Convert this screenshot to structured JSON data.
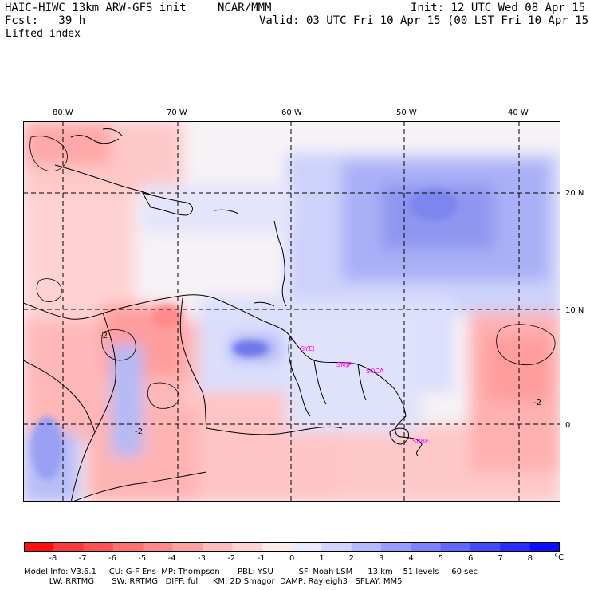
{
  "header": {
    "model": "HAIC-HIWC 13km ARW-GFS init",
    "org": "NCAR/MMM",
    "init": "Init: 12 UTC Wed 08 Apr 15",
    "fcst": "Fcst:   39 h",
    "valid": "Valid: 03 UTC Fri 10 Apr 15 (00 LST Fri 10 Apr 15)",
    "field": "Lifted index"
  },
  "map": {
    "longitude_labels": [
      "80 W",
      "70 W",
      "60 W",
      "50 W",
      "40 W"
    ],
    "latitude_labels": [
      "20 N",
      "10 N",
      "0"
    ],
    "contour_labels": [
      "-2",
      "-2",
      "-2"
    ],
    "stations": [
      "SYEJ",
      "SMJP",
      "SOCA",
      "SBBE"
    ]
  },
  "legend": {
    "ticks": [
      "-8",
      "-7",
      "-6",
      "-5",
      "-4",
      "-3",
      "-2",
      "-1",
      "0",
      "1",
      "2",
      "3",
      "4",
      "5",
      "6",
      "7",
      "8"
    ],
    "unit": "°C",
    "colors": [
      "#ff1010",
      "#ff3a3a",
      "#ff5454",
      "#ff7070",
      "#ff8888",
      "#ffa0a0",
      "#ffbcbc",
      "#ffd4d4",
      "#ffeaea",
      "#eaeaff",
      "#d0d4ff",
      "#b4baff",
      "#989eff",
      "#7c82ff",
      "#6066ff",
      "#444aff",
      "#282eff",
      "#0a10ff"
    ]
  },
  "footer": {
    "line1": "Model Info: V3.6.1     CU: G-F Ens  MP: Thompson       PBL: YSU          SF: Noah LSM      13 km    51 levels     60 sec",
    "line2": "          LW: RRTMG       SW: RRTMG   DIFF: full     KM: 2D Smagor  DAMP: Rayleigh3   SFLAY: MM5"
  }
}
